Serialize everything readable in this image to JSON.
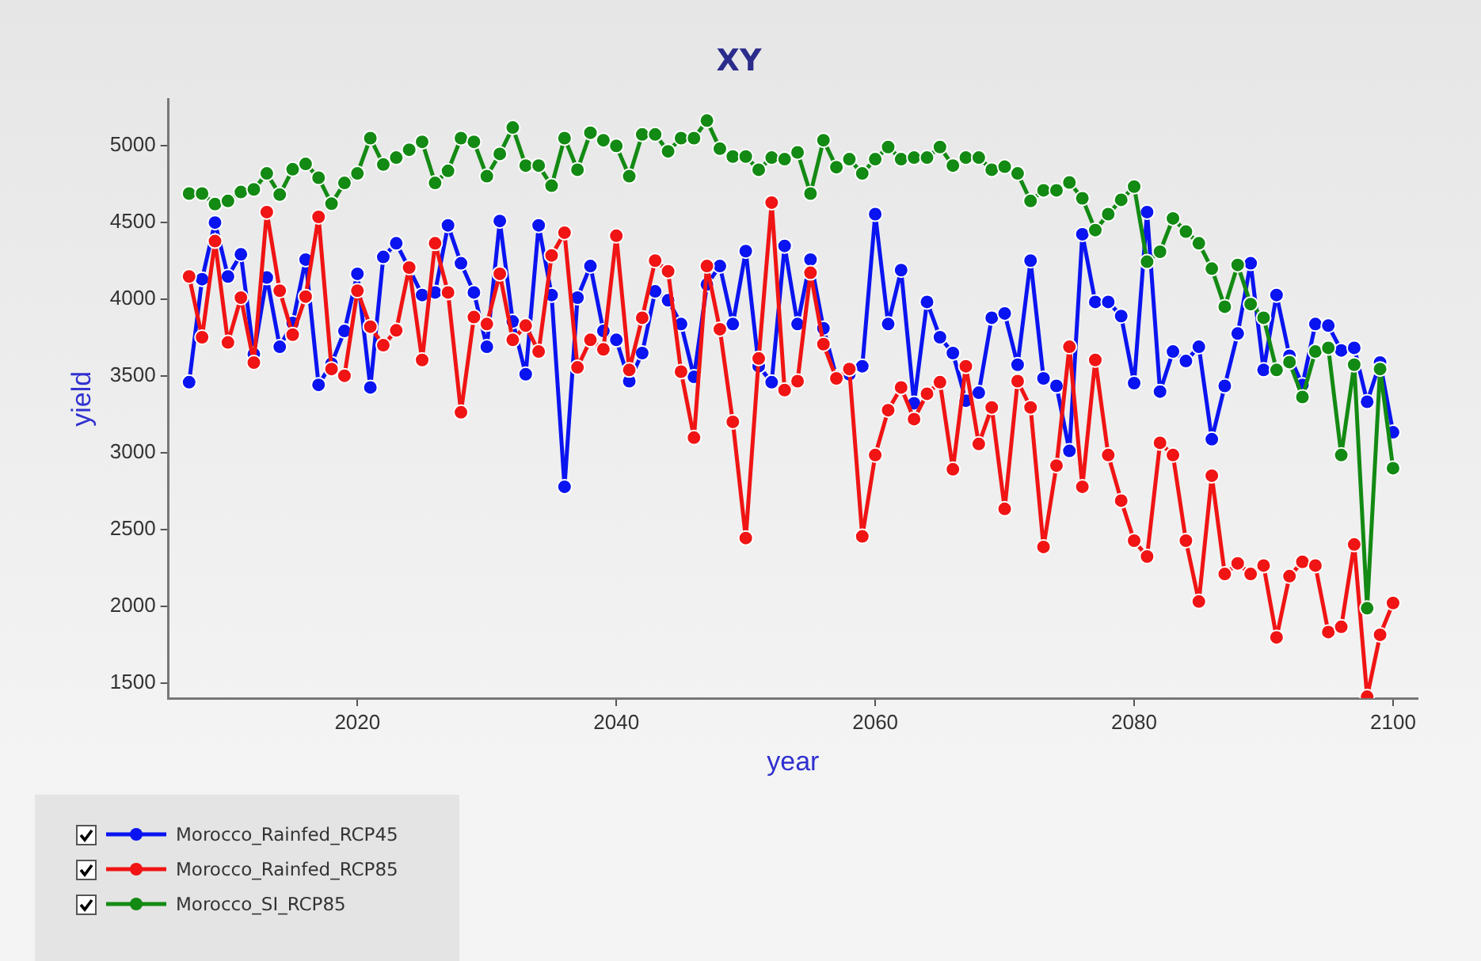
{
  "chart_data": {
    "type": "line",
    "title": "XY",
    "xlabel": "year",
    "ylabel": "yield",
    "x": [
      2007,
      2008,
      2009,
      2010,
      2011,
      2012,
      2013,
      2014,
      2015,
      2016,
      2017,
      2018,
      2019,
      2020,
      2021,
      2022,
      2023,
      2024,
      2025,
      2026,
      2027,
      2028,
      2029,
      2030,
      2031,
      2032,
      2033,
      2034,
      2035,
      2036,
      2037,
      2038,
      2039,
      2040,
      2041,
      2042,
      2043,
      2044,
      2045,
      2046,
      2047,
      2048,
      2049,
      2050,
      2051,
      2052,
      2053,
      2054,
      2055,
      2056,
      2057,
      2058,
      2059,
      2060,
      2061,
      2062,
      2063,
      2064,
      2065,
      2066,
      2067,
      2068,
      2069,
      2070,
      2071,
      2072,
      2073,
      2074,
      2075,
      2076,
      2077,
      2078,
      2079,
      2080,
      2081,
      2082,
      2083,
      2084,
      2085,
      2086,
      2087,
      2088,
      2089,
      2090,
      2091,
      2092,
      2093,
      2094,
      2095,
      2096,
      2097,
      2098,
      2099,
      2100
    ],
    "series": [
      {
        "name": "Morocco_Rainfed_RCP45",
        "color": "#0a14f0",
        "values": [
          3458,
          4129,
          4498,
          4147,
          4291,
          3641,
          4140,
          3689,
          3844,
          4257,
          3441,
          3579,
          3792,
          4164,
          3424,
          4274,
          4363,
          4198,
          4026,
          4043,
          4480,
          4233,
          4043,
          3689,
          4508,
          3854,
          3510,
          4480,
          4026,
          2777,
          4009,
          4215,
          3792,
          3734,
          3465,
          3648,
          4050,
          3992,
          3837,
          3493,
          4095,
          4215,
          3837,
          4312,
          3562,
          3458,
          4346,
          3837,
          4257,
          3809,
          3493,
          3510,
          3562,
          4553,
          3837,
          4188,
          3321,
          3981,
          3751,
          3648,
          3338,
          3390,
          3878,
          3906,
          3572,
          4250,
          3483,
          3434,
          3011,
          4422,
          3981,
          3981,
          3889,
          3452,
          4566,
          3397,
          3658,
          3596,
          3689,
          3087,
          3434,
          3775,
          4233,
          3538,
          4026,
          3630,
          3441,
          3837,
          3827,
          3665,
          3682,
          3331,
          3586,
          3132
        ]
      },
      {
        "name": "Morocco_Rainfed_RCP85",
        "color": "#f01414",
        "values": [
          4147,
          3751,
          4377,
          3717,
          4009,
          3586,
          4566,
          4054,
          3768,
          4016,
          4535,
          3544,
          3500,
          4054,
          3820,
          3699,
          3796,
          4205,
          3603,
          4363,
          4043,
          3262,
          3882,
          3837,
          4164,
          3734,
          3827,
          3658,
          4284,
          4432,
          3555,
          3734,
          3672,
          4412,
          3538,
          3878,
          4250,
          4181,
          3527,
          3097,
          4215,
          3803,
          3200,
          2443,
          3613,
          4628,
          3407,
          3465,
          4171,
          3706,
          3483,
          3544,
          2454,
          2984,
          3276,
          3424,
          3218,
          3383,
          3458,
          2891,
          3562,
          3056,
          3294,
          2633,
          3465,
          3294,
          2385,
          2915,
          3689,
          2777,
          3603,
          2984,
          2687,
          2426,
          2323,
          3063,
          2984,
          2426,
          2030,
          2849,
          2209,
          2278,
          2209,
          2264,
          1796,
          2195,
          2288,
          2264,
          1831,
          1865,
          2401,
          1410,
          1813,
          2020
        ]
      },
      {
        "name": "Morocco_SI_RCP85",
        "color": "#138a13",
        "values": [
          4687,
          4687,
          4618,
          4639,
          4697,
          4714,
          4818,
          4680,
          4845,
          4880,
          4790,
          4621,
          4756,
          4818,
          5048,
          4876,
          4921,
          4972,
          5024,
          4756,
          4835,
          5048,
          5024,
          4800,
          4945,
          5117,
          4869,
          4869,
          4738,
          5048,
          4842,
          5083,
          5034,
          4997,
          4800,
          5072,
          5072,
          4962,
          5048,
          5048,
          5162,
          4979,
          4928,
          4928,
          4842,
          4921,
          4911,
          4955,
          4687,
          5034,
          4859,
          4911,
          4818,
          4911,
          4990,
          4911,
          4921,
          4921,
          4990,
          4869,
          4921,
          4921,
          4842,
          4862,
          4818,
          4639,
          4708,
          4708,
          4759,
          4656,
          4449,
          4553,
          4646,
          4732,
          4243,
          4308,
          4525,
          4439,
          4363,
          4198,
          3950,
          4222,
          3967,
          3878,
          3538,
          3589,
          3362,
          3658,
          3682,
          2984,
          3572,
          1986,
          3544,
          2898
        ]
      }
    ],
    "xlim": [
      2005.4,
      2101.9
    ],
    "xticks": [
      2020,
      2040,
      2060,
      2080,
      2100
    ],
    "ylim": [
      1400,
      5300
    ],
    "yticks": [
      1500,
      2000,
      2500,
      3000,
      3500,
      4000,
      4500,
      5000
    ],
    "grid": false,
    "legend": "bottom left",
    "marker": "circle",
    "line_style": "solid"
  }
}
